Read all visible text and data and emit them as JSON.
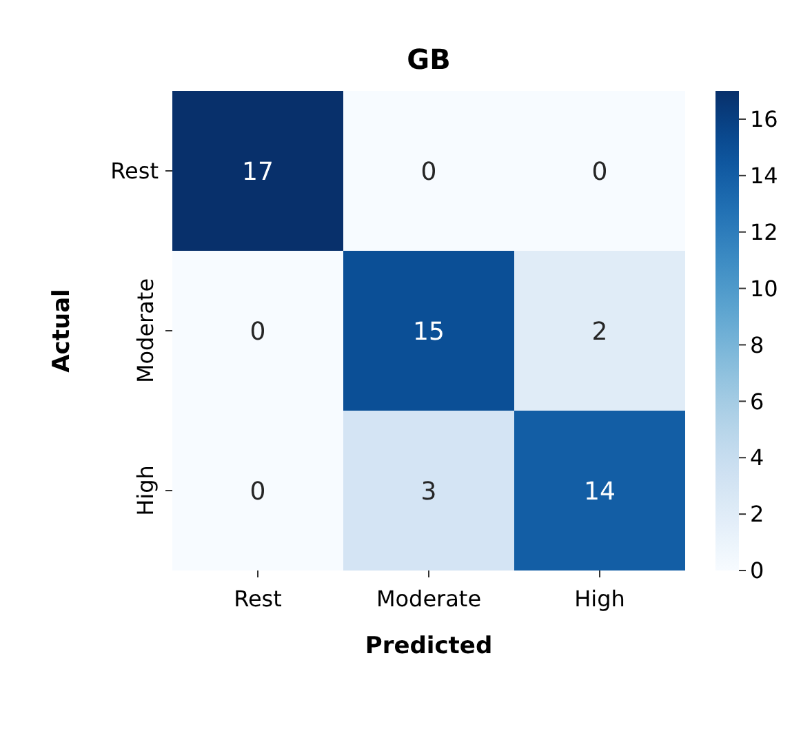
{
  "chart_data": {
    "type": "heatmap",
    "title": "GB",
    "xlabel": "Predicted",
    "ylabel": "Actual",
    "categories": [
      "Rest",
      "Moderate",
      "High"
    ],
    "y_categories": [
      "Rest",
      "Moderate",
      "High"
    ],
    "cells": [
      [
        17,
        0,
        0
      ],
      [
        0,
        15,
        2
      ],
      [
        0,
        3,
        14
      ]
    ],
    "clim": [
      0,
      17
    ],
    "cticks": [
      0,
      2,
      4,
      6,
      8,
      10,
      12,
      14,
      16
    ],
    "data_labels": true
  }
}
